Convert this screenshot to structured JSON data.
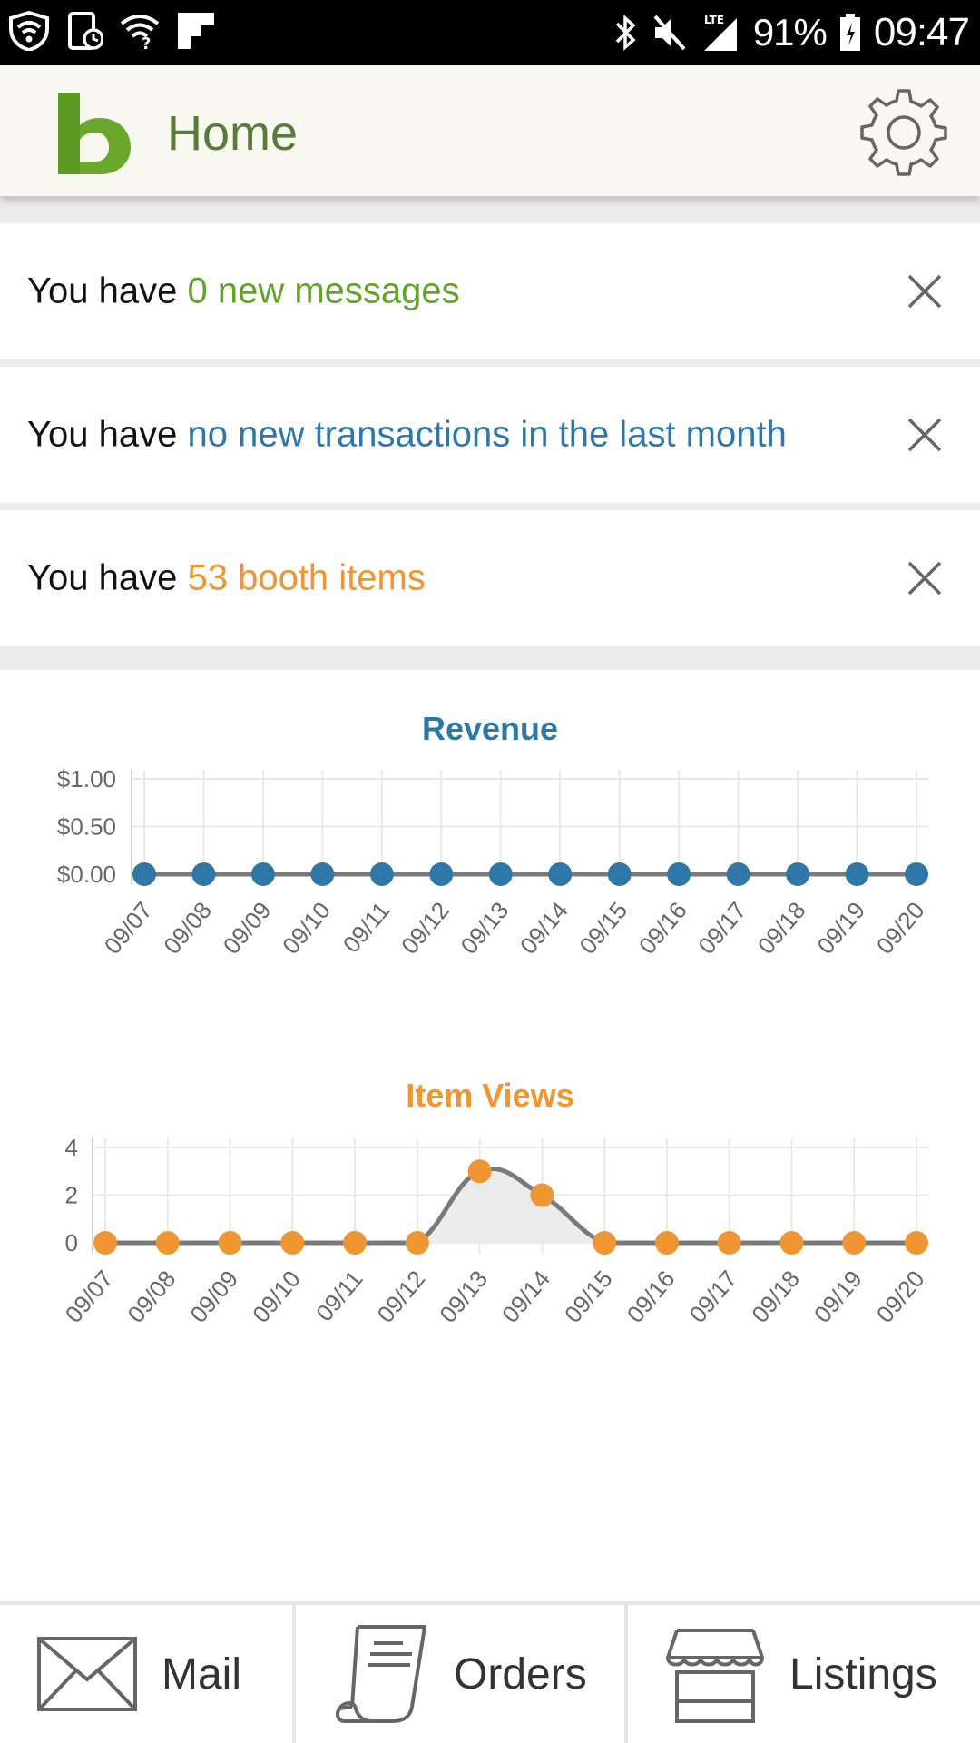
{
  "status_bar": {
    "battery": "91%",
    "time": "09:47",
    "network": "LTE"
  },
  "app_bar": {
    "logo_letter": "b",
    "title": "Home"
  },
  "notifications": [
    {
      "prefix": "You have ",
      "highlight": "0 new messages",
      "accent": "#62a32a"
    },
    {
      "prefix": "You have ",
      "highlight": "no new transactions in the last month",
      "accent": "#2f77a6"
    },
    {
      "prefix": "You have ",
      "highlight": "53 booth items",
      "accent": "#ef9531"
    }
  ],
  "chart_data": [
    {
      "type": "line",
      "title": "Revenue",
      "color": "#2f77a6",
      "categories": [
        "09/07",
        "09/08",
        "09/09",
        "09/10",
        "09/11",
        "09/12",
        "09/13",
        "09/14",
        "09/15",
        "09/16",
        "09/17",
        "09/18",
        "09/19",
        "09/20"
      ],
      "values": [
        0,
        0,
        0,
        0,
        0,
        0,
        0,
        0,
        0,
        0,
        0,
        0,
        0,
        0
      ],
      "ytick_labels": [
        "$1.00",
        "$0.50",
        "$0.00"
      ],
      "ytick_values": [
        1,
        0.5,
        0
      ],
      "ylim": [
        0,
        1
      ],
      "grid": true
    },
    {
      "type": "area",
      "title": "Item Views",
      "color": "#ef9531",
      "categories": [
        "09/07",
        "09/08",
        "09/09",
        "09/10",
        "09/11",
        "09/12",
        "09/13",
        "09/14",
        "09/15",
        "09/16",
        "09/17",
        "09/18",
        "09/19",
        "09/20"
      ],
      "values": [
        0,
        0,
        0,
        0,
        0,
        0,
        3,
        2,
        0,
        0,
        0,
        0,
        0,
        0
      ],
      "ytick_labels": [
        "4",
        "2",
        "0"
      ],
      "ytick_values": [
        4,
        2,
        0
      ],
      "ylim": [
        0,
        4
      ],
      "grid": true
    }
  ],
  "bottom_nav": {
    "mail": "Mail",
    "orders": "Orders",
    "listings": "Listings"
  }
}
